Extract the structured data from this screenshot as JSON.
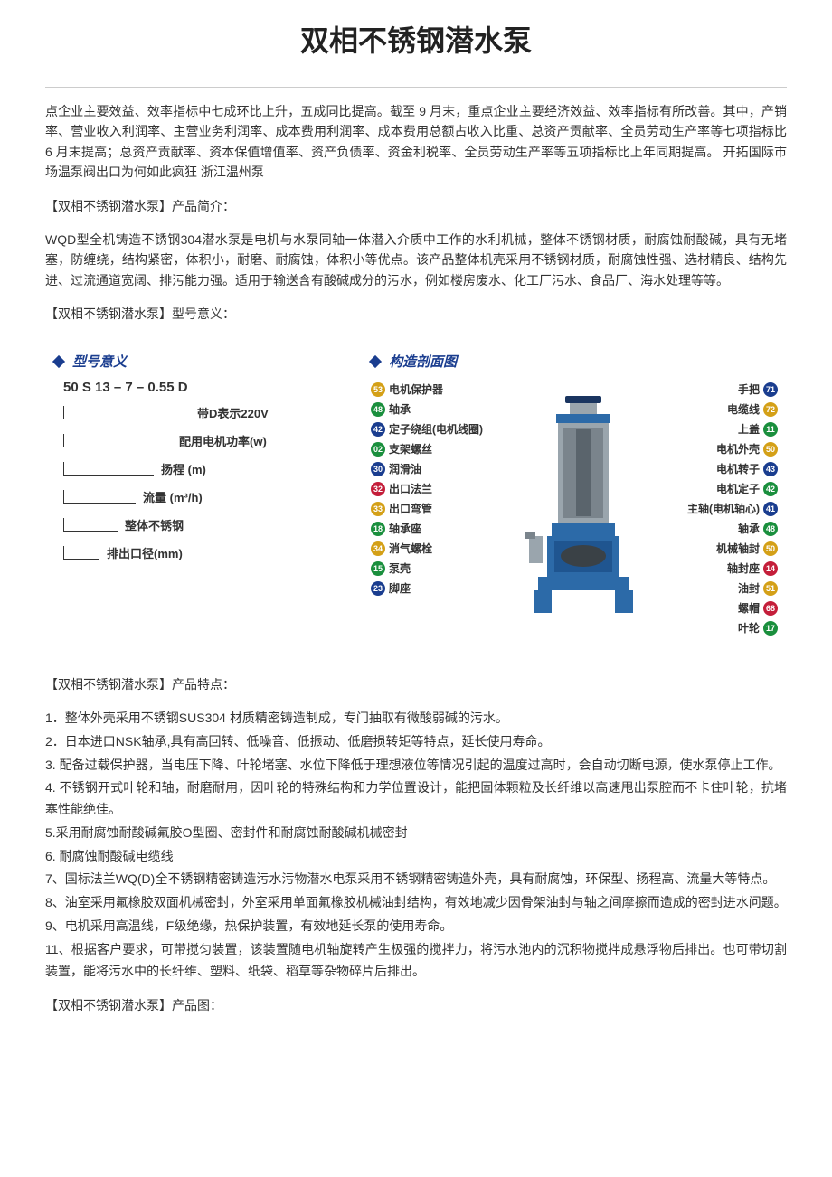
{
  "title": "双相不锈钢潜水泵",
  "intro_paragraph": "点企业主要效益、效率指标中七成环比上升，五成同比提高。截至 9 月末，重点企业主要经济效益、效率指标有所改善。其中，产销率、营业收入利润率、主营业务利润率、成本费用利润率、成本费用总额占收入比重、总资产贡献率、全员劳动生产率等七项指标比 6 月末提高；总资产贡献率、资本保值增值率、资产负债率、资金利税率、全员劳动生产率等五项指标比上年同期提高。 开拓国际市场温泵阀出口为何如此疯狂 浙江温州泵",
  "section_product_intro_label": "【双相不锈钢潜水泵】产品简介：",
  "product_intro": "WQD型全机铸造不锈钢304潜水泵是电机与水泵同轴一体潜入介质中工作的水利机械，整体不锈钢材质，耐腐蚀耐酸碱，具有无堵塞，防缠绕，结构紧密，体积小，耐磨、耐腐蚀，体积小等优点。该产品整体机壳采用不锈钢材质，耐腐蚀性强、选材精良、结构先进、过流通道宽阔、排污能力强。适用于输送含有酸碱成分的污水，例如楼房废水、化工厂污水、食品厂、海水处理等等。",
  "section_model_label": "【双相不锈钢潜水泵】型号意义：",
  "model_diagram": {
    "title": "型号意义",
    "code": "50 S 13 – 7 – 0.55 D",
    "lines": [
      "带D表示220V",
      "配用电机功率(w)",
      "扬程 (m)",
      "流量 (m³/h)",
      "整体不锈钢",
      "排出口径(mm)"
    ]
  },
  "structure_diagram": {
    "title": "构造剖面图",
    "left_parts": [
      {
        "num": "53",
        "label": "电机保护器",
        "color": "#d4a017"
      },
      {
        "num": "48",
        "label": "轴承",
        "color": "#1a8f3d"
      },
      {
        "num": "42",
        "label": "定子绕组(电机线圈)",
        "color": "#1a3d8f"
      },
      {
        "num": "02",
        "label": "支架螺丝",
        "color": "#1a8f3d"
      },
      {
        "num": "30",
        "label": "润滑油",
        "color": "#1a3d8f"
      },
      {
        "num": "32",
        "label": "出口法兰",
        "color": "#c41e3a"
      },
      {
        "num": "33",
        "label": "出口弯管",
        "color": "#d4a017"
      },
      {
        "num": "18",
        "label": "轴承座",
        "color": "#1a8f3d"
      },
      {
        "num": "34",
        "label": "消气螺栓",
        "color": "#d4a017"
      },
      {
        "num": "15",
        "label": "泵壳",
        "color": "#1a8f3d"
      },
      {
        "num": "23",
        "label": "脚座",
        "color": "#1a3d8f"
      }
    ],
    "right_parts": [
      {
        "num": "71",
        "label": "手把",
        "color": "#1a3d8f"
      },
      {
        "num": "72",
        "label": "电缆线",
        "color": "#d4a017"
      },
      {
        "num": "11",
        "label": "上盖",
        "color": "#1a8f3d"
      },
      {
        "num": "50",
        "label": "电机外壳",
        "color": "#d4a017"
      },
      {
        "num": "43",
        "label": "电机转子",
        "color": "#1a3d8f"
      },
      {
        "num": "42",
        "label": "电机定子",
        "color": "#1a8f3d"
      },
      {
        "num": "41",
        "label": "主轴(电机轴心)",
        "color": "#1a3d8f"
      },
      {
        "num": "48",
        "label": "轴承",
        "color": "#1a8f3d"
      },
      {
        "num": "50",
        "label": "机械轴封",
        "color": "#d4a017"
      },
      {
        "num": "14",
        "label": "轴封座",
        "color": "#c41e3a"
      },
      {
        "num": "51",
        "label": "油封",
        "color": "#d4a017"
      },
      {
        "num": "68",
        "label": "螺帽",
        "color": "#c41e3a"
      },
      {
        "num": "17",
        "label": "叶轮",
        "color": "#1a8f3d"
      }
    ],
    "pump_colors": {
      "body": "#9aa5ad",
      "base": "#2c6aa8",
      "cap": "#1a3560",
      "dark": "#3a4146"
    }
  },
  "section_features_label": "【双相不锈钢潜水泵】产品特点：",
  "features": [
    "1．整体外壳采用不锈钢SUS304 材质精密铸造制成，专门抽取有微酸弱碱的污水。",
    "2．日本进口NSK轴承,具有高回转、低噪音、低振动、低磨损转矩等特点，延长使用寿命。",
    "3. 配备过载保护器，当电压下降、叶轮堵塞、水位下降低于理想液位等情况引起的温度过高时，会自动切断电源，使水泵停止工作。",
    "4. 不锈钢开式叶轮和轴，耐磨耐用，因叶轮的特殊结构和力学位置设计，能把固体颗粒及长纤维以高速甩出泵腔而不卡住叶轮，抗堵塞性能绝佳。",
    "5.采用耐腐蚀耐酸碱氟胶O型圈、密封件和耐腐蚀耐酸碱机械密封",
    "6. 耐腐蚀耐酸碱电缆线",
    "7、国标法兰WQ(D)全不锈钢精密铸造污水污物潜水电泵采用不锈钢精密铸造外壳，具有耐腐蚀，环保型、扬程高、流量大等特点。",
    "8、油室采用氟橡胶双面机械密封，外室采用单面氟橡胶机械油封结构，有效地减少因骨架油封与轴之间摩擦而造成的密封进水问题。",
    "9、电机采用高温线，F级绝缘，热保护装置，有效地延长泵的使用寿命。",
    "11、根据客户要求，可带搅匀装置，该装置随电机轴旋转产生极强的搅拌力，将污水池内的沉积物搅拌成悬浮物后排出。也可带切割装置，能将污水中的长纤维、塑料、纸袋、稻草等杂物碎片后排出。"
  ],
  "section_product_image_label": "【双相不锈钢潜水泵】产品图："
}
